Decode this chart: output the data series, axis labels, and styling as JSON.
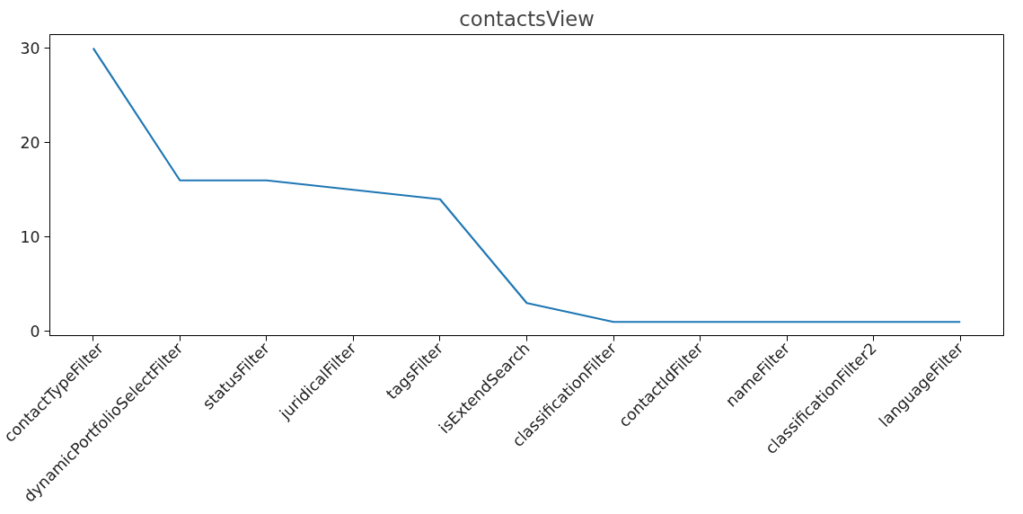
{
  "chart_data": {
    "type": "line",
    "title": "contactsView",
    "categories": [
      "contactTypeFilter",
      "dynamicPortfolioSelectFilter",
      "statusFilter",
      "juridicalFilter",
      "tagsFilter",
      "isExtendSearch",
      "classificationFilter",
      "contactIdFilter",
      "nameFilter",
      "classificationFilter2",
      "languageFilter"
    ],
    "series": [
      {
        "color": "#1f77b4",
        "values": [
          30,
          16,
          16,
          15,
          14,
          3,
          1,
          1,
          1,
          1,
          1
        ]
      }
    ],
    "ylim": [
      -0.45,
      31.45
    ],
    "yticks": [
      0,
      10,
      20,
      30
    ],
    "grid": false,
    "marker": "none",
    "line_style": "solid"
  }
}
